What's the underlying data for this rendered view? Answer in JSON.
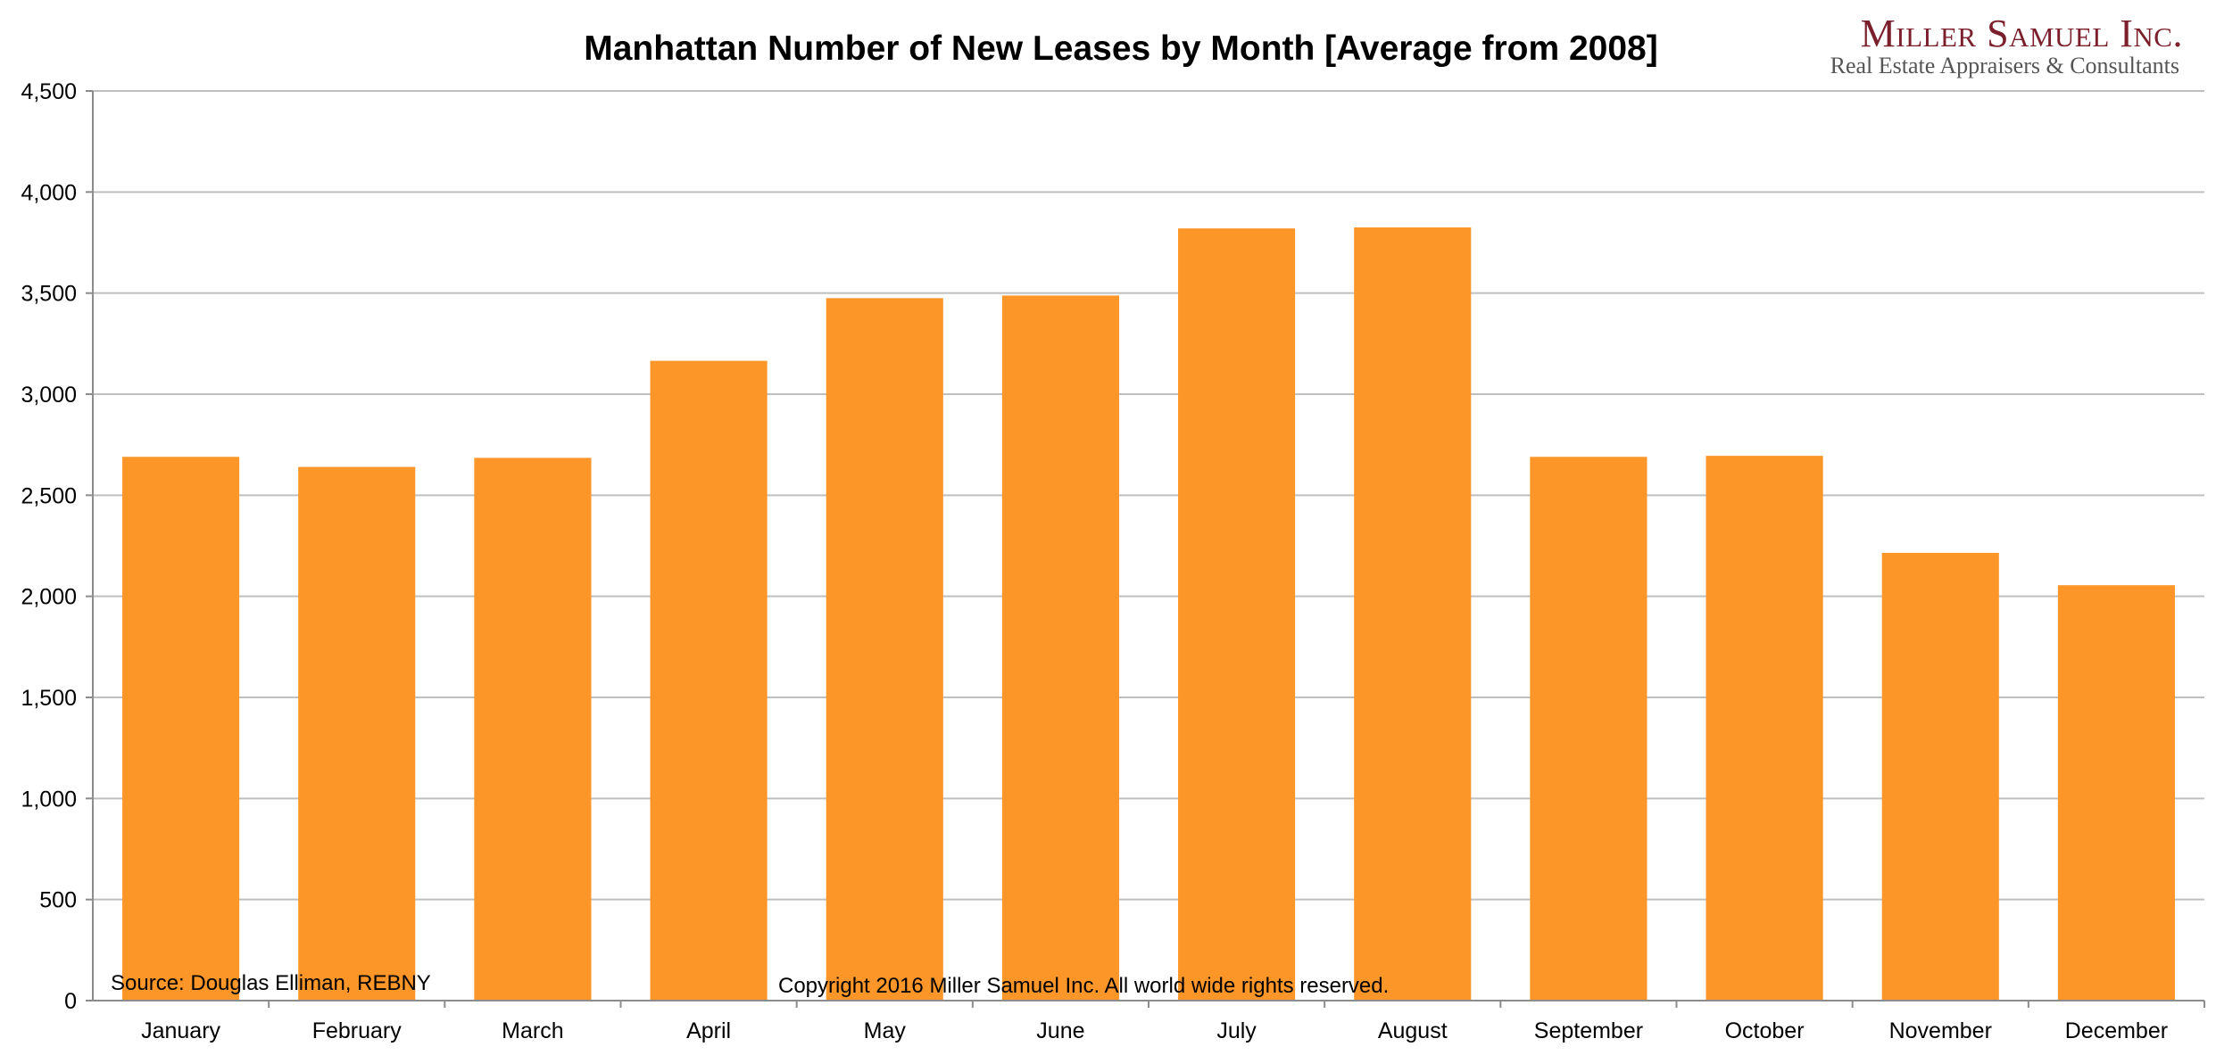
{
  "chart_data": {
    "type": "bar",
    "title": "Manhattan Number of New Leases by Month [Average from 2008]",
    "categories": [
      "January",
      "February",
      "March",
      "April",
      "May",
      "June",
      "July",
      "August",
      "September",
      "October",
      "November",
      "December"
    ],
    "values": [
      2690,
      2640,
      2685,
      3165,
      3475,
      3488,
      3820,
      3825,
      2690,
      2695,
      2215,
      2055
    ],
    "ylim": [
      0,
      4500
    ],
    "yticks": [
      0,
      500,
      1000,
      1500,
      2000,
      2500,
      3000,
      3500,
      4000,
      4500
    ],
    "ytick_labels": [
      "0",
      "500",
      "1,000",
      "1,500",
      "2,000",
      "2,500",
      "3,000",
      "3,500",
      "4,000",
      "4,500"
    ],
    "xlabel": "",
    "ylabel": "",
    "grid": true,
    "bar_color": "#fc9629",
    "grid_color": "#bfbfbf"
  },
  "notes": {
    "source": "Source: Douglas Elliman, REBNY",
    "copyright": "Copyright 2016 Miller Samuel Inc.  All world wide rights reserved."
  },
  "logo": {
    "name": "Miller Samuel Inc.",
    "tagline": "Real Estate Appraisers & Consultants",
    "color": "#7a1f2b"
  }
}
